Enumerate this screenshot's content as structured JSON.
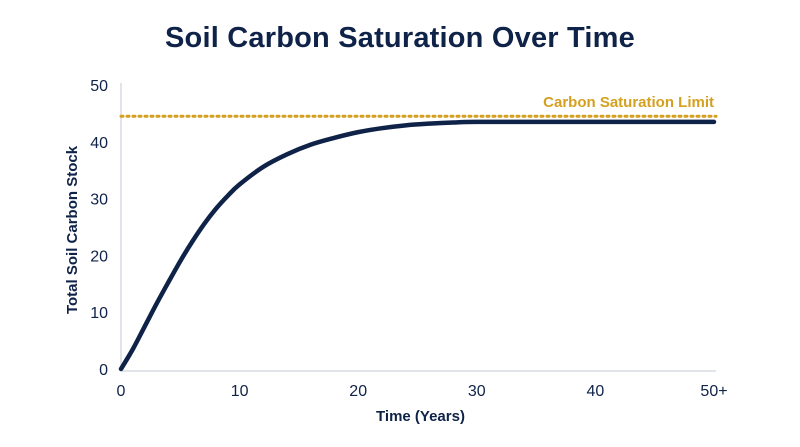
{
  "chart_data": {
    "type": "line",
    "title": "Soil Carbon Saturation Over Time",
    "xlabel": "Time (Years)",
    "ylabel": "Total Soil Carbon Stock",
    "xlim": [
      0,
      50
    ],
    "ylim": [
      0,
      50
    ],
    "x_ticks": [
      {
        "value": 0,
        "label": "0"
      },
      {
        "value": 10,
        "label": "10"
      },
      {
        "value": 20,
        "label": "20"
      },
      {
        "value": 30,
        "label": "30"
      },
      {
        "value": 40,
        "label": "40"
      },
      {
        "value": 50,
        "label": "50+"
      }
    ],
    "y_ticks": [
      {
        "value": 0,
        "label": "0"
      },
      {
        "value": 10,
        "label": "10"
      },
      {
        "value": 20,
        "label": "20"
      },
      {
        "value": 30,
        "label": "30"
      },
      {
        "value": 40,
        "label": "40"
      },
      {
        "value": 50,
        "label": "50"
      }
    ],
    "grid": false,
    "legend": "none",
    "series": [
      {
        "color": "#0f2248",
        "x": [
          0,
          1,
          2,
          3,
          4,
          5,
          6,
          7,
          8,
          9,
          10,
          12,
          14,
          16,
          18,
          20,
          22,
          24,
          26,
          28,
          30,
          35,
          40,
          45,
          50
        ],
        "y": [
          0,
          3.5,
          7.5,
          11.5,
          15.3,
          19,
          22.4,
          25.5,
          28.2,
          30.5,
          32.5,
          35.6,
          37.8,
          39.5,
          40.7,
          41.7,
          42.4,
          42.9,
          43.2,
          43.4,
          43.5,
          43.5,
          43.5,
          43.5,
          43.5
        ]
      }
    ],
    "reference_lines": [
      {
        "orientation": "horizontal",
        "value": 44.5,
        "label": "Carbon Saturation Limit",
        "color": "#d4a020",
        "style": "dotted"
      }
    ]
  }
}
